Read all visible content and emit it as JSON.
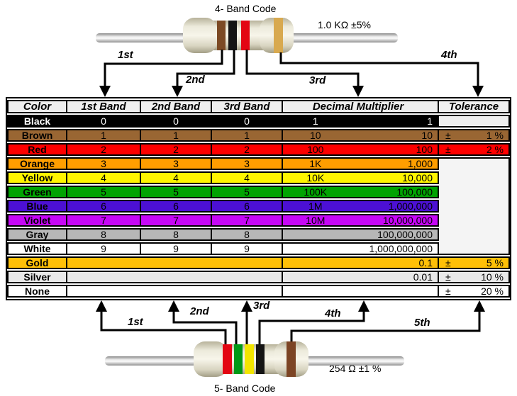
{
  "top_section": {
    "title": "4- Band Code",
    "value_label": "1.0 KΩ  ±5%",
    "arrow_labels": [
      "1st",
      "2nd",
      "3rd",
      "4th"
    ],
    "band_names": [
      "brown",
      "black",
      "red",
      "gold"
    ],
    "band_colors": [
      "#7C4A24",
      "#141414",
      "#E30613",
      "#D8A94F"
    ]
  },
  "bottom_section": {
    "title": "5- Band Code",
    "value_label": "254 Ω  ±1 %",
    "arrow_labels": [
      "1st",
      "2nd",
      "3rd",
      "4th",
      "5th"
    ],
    "band_names": [
      "red",
      "green",
      "yellow",
      "black",
      "brown"
    ],
    "band_colors": [
      "#E30613",
      "#009A17",
      "#F2E500",
      "#141414",
      "#7C4424"
    ]
  },
  "table": {
    "headers": [
      "Color",
      "1st Band",
      "2nd Band",
      "3rd Band",
      "Decimal Multiplier",
      "Tolerance"
    ],
    "header_bg": "#EFEFEF",
    "empty_tolerance_bg": "#EFEFEF",
    "merged_tolerance_bg": "#F4F4F4",
    "rows": [
      {
        "name": "Black",
        "bg": "#000000",
        "fg": "#FFFFFF",
        "bands": [
          "0",
          "0",
          "0"
        ],
        "mult_prefix": "1",
        "mult_value": "1",
        "tol_type": "empty",
        "tol_sign": "",
        "tol_value": ""
      },
      {
        "name": "Brown",
        "bg": "#996633",
        "fg": "#000000",
        "bands": [
          "1",
          "1",
          "1"
        ],
        "mult_prefix": "10",
        "mult_value": "10",
        "tol_type": "value",
        "tol_sign": "±",
        "tol_value": "1 %"
      },
      {
        "name": "Red",
        "bg": "#FD0000",
        "fg": "#000000",
        "bands": [
          "2",
          "2",
          "2"
        ],
        "mult_prefix": "100",
        "mult_value": "100",
        "tol_type": "value",
        "tol_sign": "±",
        "tol_value": "2 %"
      },
      {
        "name": "Orange",
        "bg": "#FF9E00",
        "fg": "#000000",
        "bands": [
          "3",
          "3",
          "3"
        ],
        "mult_prefix": "1K",
        "mult_value": "1,000",
        "tol_type": "span_start",
        "tol_span": 7,
        "tol_sign": "",
        "tol_value": ""
      },
      {
        "name": "Yellow",
        "bg": "#FFF500",
        "fg": "#000000",
        "bands": [
          "4",
          "4",
          "4"
        ],
        "mult_prefix": "10K",
        "mult_value": "10,000",
        "tol_type": "skip",
        "tol_sign": "",
        "tol_value": ""
      },
      {
        "name": "Green",
        "bg": "#00A302",
        "fg": "#000000",
        "bands": [
          "5",
          "5",
          "5"
        ],
        "mult_prefix": "100K",
        "mult_value": "100,000",
        "tol_type": "skip",
        "tol_sign": "",
        "tol_value": ""
      },
      {
        "name": "Blue",
        "bg": "#4C10D4",
        "fg": "#000000",
        "bands": [
          "6",
          "6",
          "6"
        ],
        "mult_prefix": "1M",
        "mult_value": "1,000,000",
        "tol_type": "skip",
        "tol_sign": "",
        "tol_value": ""
      },
      {
        "name": "Violet",
        "bg": "#C607F6",
        "fg": "#000000",
        "bands": [
          "7",
          "7",
          "7"
        ],
        "mult_prefix": "10M",
        "mult_value": "10,000,000",
        "tol_type": "skip",
        "tol_sign": "",
        "tol_value": ""
      },
      {
        "name": "Gray",
        "bg": "#B7B7B7",
        "fg": "#000000",
        "bands": [
          "8",
          "8",
          "8"
        ],
        "mult_prefix": "",
        "mult_value": "100,000,000",
        "tol_type": "skip",
        "tol_sign": "",
        "tol_value": ""
      },
      {
        "name": "White",
        "bg": "#FFFFFF",
        "fg": "#000000",
        "bands": [
          "9",
          "9",
          "9"
        ],
        "mult_prefix": "",
        "mult_value": "1,000,000,000",
        "tol_type": "skip",
        "tol_sign": "",
        "tol_value": ""
      },
      {
        "name": "Gold",
        "bg": "#FFC007",
        "fg": "#000000",
        "bands": null,
        "mult_prefix": "",
        "mult_value": "0.1",
        "tol_type": "value",
        "tol_sign": "±",
        "tol_value": "5 %"
      },
      {
        "name": "Silver",
        "bg": "#E9E9E9",
        "fg": "#000000",
        "bands": null,
        "mult_prefix": "",
        "mult_value": "0.01",
        "tol_type": "value",
        "tol_sign": "±",
        "tol_value": "10 %"
      },
      {
        "name": "None",
        "bg": "#FFFFFF",
        "fg": "#000000",
        "bands": null,
        "mult_prefix": "",
        "mult_value": "",
        "tol_type": "value",
        "tol_sign": "±",
        "tol_value": "20 %"
      }
    ]
  }
}
